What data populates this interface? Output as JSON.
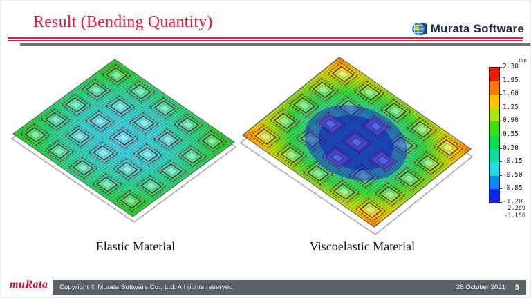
{
  "slide": {
    "title": "Result (Bending Quantity)"
  },
  "branding": {
    "software_logo_text": "Murata Software",
    "footer_logo_text": "muRata",
    "accent_red": "#ea1a3c",
    "logo_navy": "#1c2b4a",
    "footer_bar_gray": "#5a6063"
  },
  "panels": [
    {
      "caption": "Elastic Material"
    },
    {
      "caption": "Viscoelastic Material"
    }
  ],
  "legend": {
    "unit": "mm",
    "ticks": [
      "2.30",
      "1.95",
      "1.60",
      "1.25",
      "0.90",
      "0.55",
      "0.20",
      "-0.15",
      "-0.50",
      "-0.85",
      "-1.20"
    ],
    "colors": [
      "#ee1c0c",
      "#f57908",
      "#fec303",
      "#a6e80b",
      "#3cdd14",
      "#12da4d",
      "#0cdd9a",
      "#2cd7ee",
      "#0c86f0",
      "#0b27ee"
    ],
    "max_value": "2.269",
    "min_value": "-1.156"
  },
  "footer": {
    "copyright": "Copyright © Murata Software Co., Ltd. All rights reserved.",
    "date": "28 October 2021",
    "page": "5"
  }
}
